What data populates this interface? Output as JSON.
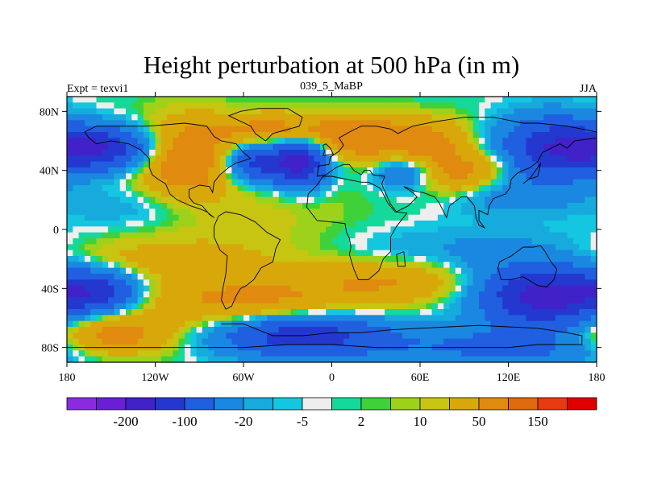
{
  "chart_data": {
    "type": "heatmap",
    "title": "Height perturbation at 500 hPa (in m)",
    "left_label": "Expt = texvi1",
    "center_label": "039_5_MaBP",
    "right_label": "JJA",
    "x_ticks": [
      {
        "value": -180,
        "label": "180"
      },
      {
        "value": -120,
        "label": "120W"
      },
      {
        "value": -60,
        "label": "60W"
      },
      {
        "value": 0,
        "label": "0"
      },
      {
        "value": 60,
        "label": "60E"
      },
      {
        "value": 120,
        "label": "120E"
      },
      {
        "value": 180,
        "label": "180"
      }
    ],
    "y_ticks": [
      {
        "value": 80,
        "label": "80N"
      },
      {
        "value": 40,
        "label": "40N"
      },
      {
        "value": 0,
        "label": "0"
      },
      {
        "value": -40,
        "label": "40S"
      },
      {
        "value": -80,
        "label": "80S"
      }
    ],
    "xlim": [
      -180,
      180
    ],
    "ylim": [
      -90,
      90
    ],
    "colorbar": {
      "colors": [
        "#8a2be2",
        "#6a1fd6",
        "#4022c8",
        "#2438d0",
        "#1f5fe0",
        "#1a88e0",
        "#16aadd",
        "#14c6e0",
        "#eeeeee",
        "#14d99a",
        "#3fd13a",
        "#9ed21a",
        "#c8c412",
        "#d8a80a",
        "#e08a10",
        "#e06a10",
        "#e83a10",
        "#e00000"
      ],
      "tick_labels": [
        {
          "after_index": 1,
          "label": "-200"
        },
        {
          "after_index": 3,
          "label": "-100"
        },
        {
          "after_index": 5,
          "label": "-20"
        },
        {
          "after_index": 7,
          "label": "-5"
        },
        {
          "after_index": 9,
          "label": "2"
        },
        {
          "after_index": 11,
          "label": "10"
        },
        {
          "after_index": 13,
          "label": "50"
        },
        {
          "after_index": 15,
          "label": "150"
        }
      ]
    },
    "field_features": [
      {
        "lon": -160,
        "lat": 55,
        "amp": -150,
        "slon": 28,
        "slat": 10
      },
      {
        "lon": -100,
        "lat": 48,
        "amp": 90,
        "slon": 22,
        "slat": 18
      },
      {
        "lon": -48,
        "lat": 45,
        "amp": -120,
        "slon": 16,
        "slat": 9
      },
      {
        "lon": -20,
        "lat": 45,
        "amp": -150,
        "slon": 12,
        "slat": 11
      },
      {
        "lon": -40,
        "lat": 68,
        "amp": 60,
        "slon": 30,
        "slat": 8
      },
      {
        "lon": 20,
        "lat": 62,
        "amp": 80,
        "slon": 24,
        "slat": 10
      },
      {
        "lon": 65,
        "lat": 60,
        "amp": 60,
        "slon": 20,
        "slat": 10
      },
      {
        "lon": 50,
        "lat": 38,
        "amp": -60,
        "slon": 14,
        "slat": 8
      },
      {
        "lon": 90,
        "lat": 38,
        "amp": 70,
        "slon": 25,
        "slat": 10
      },
      {
        "lon": 150,
        "lat": 55,
        "amp": -130,
        "slon": 25,
        "slat": 15
      },
      {
        "lon": 120,
        "lat": 25,
        "amp": -40,
        "slon": 30,
        "slat": 10
      },
      {
        "lon": -130,
        "lat": 15,
        "amp": -20,
        "slon": 40,
        "slat": 10
      },
      {
        "lon": -60,
        "lat": 10,
        "amp": 15,
        "slon": 50,
        "slat": 18
      },
      {
        "lon": 100,
        "lat": -15,
        "amp": -25,
        "slon": 60,
        "slat": 12
      },
      {
        "lon": -120,
        "lat": -20,
        "amp": 30,
        "slon": 60,
        "slat": 10
      },
      {
        "lon": -160,
        "lat": -42,
        "amp": -120,
        "slon": 20,
        "slat": 10
      },
      {
        "lon": -60,
        "lat": -48,
        "amp": 60,
        "slon": 50,
        "slat": 12
      },
      {
        "lon": 40,
        "lat": -35,
        "amp": 50,
        "slon": 40,
        "slat": 10
      },
      {
        "lon": 145,
        "lat": -45,
        "amp": -180,
        "slon": 30,
        "slat": 14
      },
      {
        "lon": -150,
        "lat": -72,
        "amp": 80,
        "slon": 30,
        "slat": 10
      },
      {
        "lon": -20,
        "lat": -72,
        "amp": -130,
        "slon": 40,
        "slat": 10
      },
      {
        "lon": 120,
        "lat": -80,
        "amp": -60,
        "slon": 60,
        "slat": 10
      }
    ]
  }
}
